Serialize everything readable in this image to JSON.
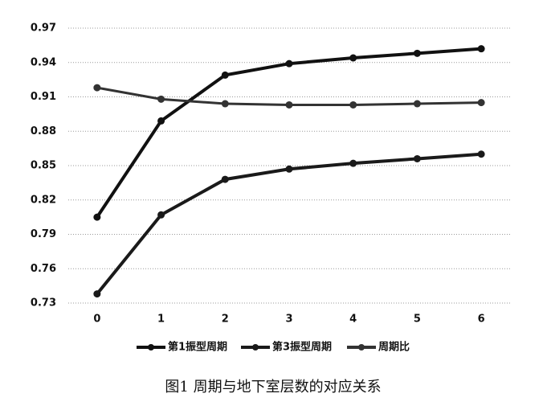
{
  "chart_data": {
    "type": "line",
    "caption": "图1 周期与地下室层数的对应关系",
    "x": [
      0,
      1,
      2,
      3,
      4,
      5,
      6
    ],
    "xlim": [
      -0.45,
      6.45
    ],
    "xticks": [
      0,
      1,
      2,
      3,
      4,
      5,
      6
    ],
    "ylim": [
      0.73,
      0.97
    ],
    "yticks": [
      0.73,
      0.76,
      0.79,
      0.82,
      0.85,
      0.88,
      0.91,
      0.94,
      0.97
    ],
    "grid": true,
    "legend": "bottom",
    "series": [
      {
        "name": "第1振型周期",
        "color": "#111111",
        "values": [
          0.805,
          0.889,
          0.929,
          0.939,
          0.944,
          0.948,
          0.952
        ]
      },
      {
        "name": "第3振型周期",
        "color": "#1a1a1a",
        "values": [
          0.738,
          0.807,
          0.838,
          0.847,
          0.852,
          0.856,
          0.86
        ]
      },
      {
        "name": "周期比",
        "color": "#333333",
        "values": [
          0.918,
          0.908,
          0.904,
          0.903,
          0.903,
          0.904,
          0.905
        ]
      }
    ]
  }
}
